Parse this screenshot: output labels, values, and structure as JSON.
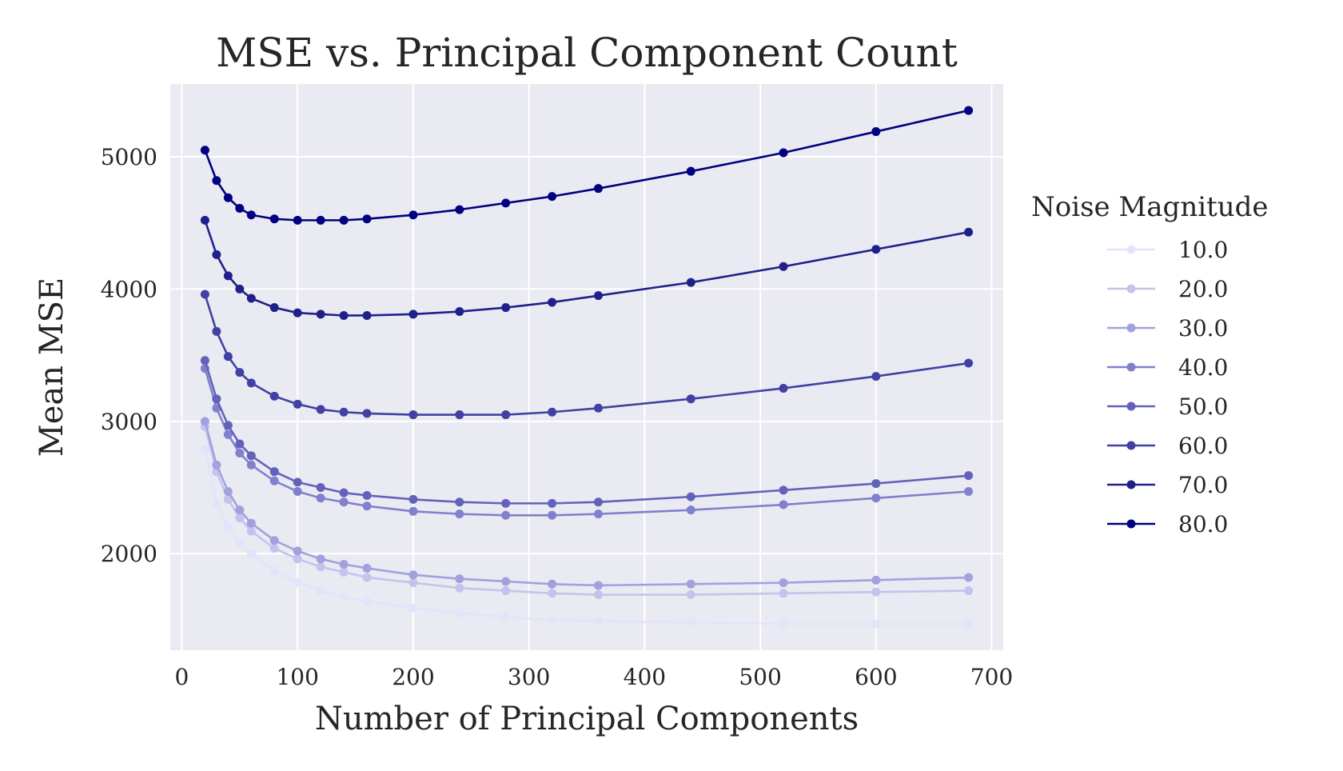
{
  "chart_data": {
    "type": "line",
    "title": "MSE vs. Principal Component Count",
    "xlabel": "Number of Principal Components",
    "ylabel": "Mean MSE",
    "xlim": [
      -10,
      710
    ],
    "ylim": [
      1270,
      5550
    ],
    "xticks": [
      0,
      100,
      200,
      300,
      400,
      500,
      600,
      700
    ],
    "yticks": [
      2000,
      3000,
      4000,
      5000
    ],
    "grid": true,
    "legend": {
      "title": "Noise Magnitude",
      "position": "right-outside"
    },
    "x": [
      20,
      30,
      40,
      50,
      60,
      80,
      100,
      120,
      140,
      160,
      200,
      240,
      280,
      320,
      360,
      440,
      520,
      600,
      680
    ],
    "series": [
      {
        "name": "10.0",
        "color": "#e3e3fb",
        "values": [
          2790,
          2380,
          2200,
          2080,
          2000,
          1870,
          1780,
          1720,
          1670,
          1640,
          1590,
          1550,
          1520,
          1500,
          1490,
          1480,
          1470,
          1470,
          1470
        ]
      },
      {
        "name": "20.0",
        "color": "#c3c3ed",
        "values": [
          2960,
          2620,
          2410,
          2270,
          2170,
          2040,
          1960,
          1900,
          1860,
          1820,
          1780,
          1740,
          1720,
          1700,
          1690,
          1690,
          1700,
          1710,
          1720
        ]
      },
      {
        "name": "30.0",
        "color": "#a1a1de",
        "values": [
          3000,
          2670,
          2470,
          2330,
          2230,
          2100,
          2020,
          1960,
          1920,
          1890,
          1840,
          1810,
          1790,
          1770,
          1760,
          1770,
          1780,
          1800,
          1820
        ]
      },
      {
        "name": "40.0",
        "color": "#8080cd",
        "values": [
          3400,
          3100,
          2900,
          2760,
          2670,
          2550,
          2470,
          2420,
          2390,
          2360,
          2320,
          2300,
          2290,
          2290,
          2300,
          2330,
          2370,
          2420,
          2470
        ]
      },
      {
        "name": "50.0",
        "color": "#6262bb",
        "values": [
          3460,
          3170,
          2970,
          2830,
          2740,
          2620,
          2540,
          2500,
          2460,
          2440,
          2410,
          2390,
          2380,
          2380,
          2390,
          2430,
          2480,
          2530,
          2590
        ]
      },
      {
        "name": "60.0",
        "color": "#4141a3",
        "values": [
          3960,
          3680,
          3490,
          3370,
          3290,
          3190,
          3130,
          3090,
          3070,
          3060,
          3050,
          3050,
          3050,
          3070,
          3100,
          3170,
          3250,
          3340,
          3440
        ]
      },
      {
        "name": "70.0",
        "color": "#20208b",
        "values": [
          4520,
          4260,
          4100,
          4000,
          3930,
          3860,
          3820,
          3810,
          3800,
          3800,
          3810,
          3830,
          3860,
          3900,
          3950,
          4050,
          4170,
          4300,
          4430
        ]
      },
      {
        "name": "80.0",
        "color": "#000080",
        "values": [
          5050,
          4820,
          4690,
          4610,
          4560,
          4530,
          4520,
          4520,
          4520,
          4530,
          4560,
          4600,
          4650,
          4700,
          4760,
          4890,
          5030,
          5190,
          5350
        ]
      }
    ]
  }
}
